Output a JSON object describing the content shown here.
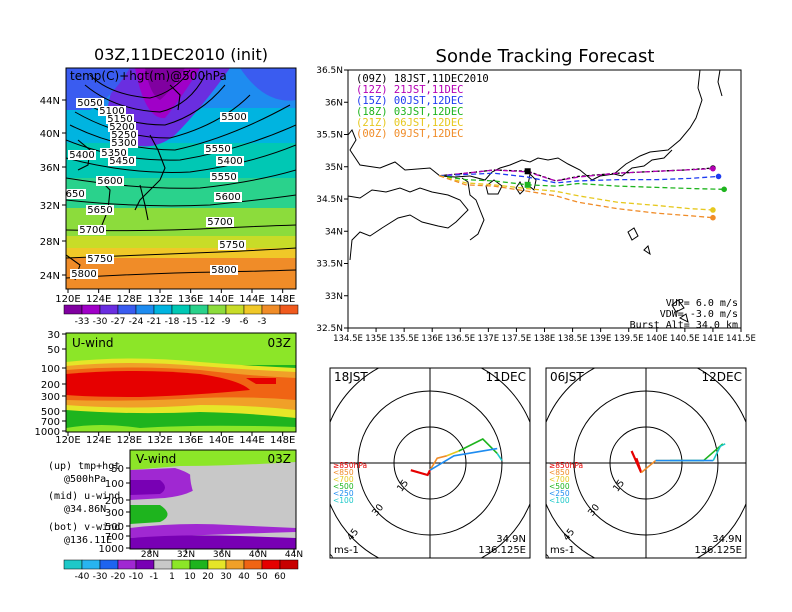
{
  "chart_data": [
    {
      "type": "heatmap",
      "panel": "upper-left",
      "title": "03Z,11DEC2010 (init)",
      "subtitle": "temp(C)+hgt(m)@500hPa",
      "xticks": [
        "120E",
        "124E",
        "128E",
        "132E",
        "136E",
        "140E",
        "144E",
        "148E"
      ],
      "yticks": [
        "44N",
        "40N",
        "36N",
        "32N",
        "28N",
        "24N"
      ],
      "contour_labels": [
        "5050",
        "5100",
        "5150",
        "5200",
        "5250",
        "5300",
        "5350",
        "5400",
        "5450",
        "5500",
        "5550",
        "5400",
        "5600",
        "5550",
        "5650",
        "5600",
        "5650",
        "5700",
        "5700",
        "5750",
        "5750",
        "5800",
        "5800"
      ],
      "colorbar": [
        "-33",
        "-30",
        "-27",
        "-24",
        "-21",
        "-18",
        "-15",
        "-12",
        "-9",
        "-6",
        "-3"
      ],
      "colorbar_colors": [
        "#8000a0",
        "#a000c8",
        "#6a2ee0",
        "#3a5cf0",
        "#1e8cf0",
        "#00b4e0",
        "#00c8b4",
        "#2ad28c",
        "#8cdc3c",
        "#c8dc28",
        "#f0c828",
        "#f08c28",
        "#f05a1e"
      ]
    },
    {
      "type": "heatmap",
      "panel": "middle-left",
      "title": "U-wind",
      "time": "03Z",
      "xticks": [
        "120E",
        "124E",
        "128E",
        "132E",
        "136E",
        "140E",
        "144E",
        "148E"
      ],
      "yticks": [
        "30",
        "50",
        "100",
        "200",
        "300",
        "500",
        "700",
        "1000"
      ]
    },
    {
      "type": "heatmap",
      "panel": "lower-left",
      "title": "V-wind",
      "time": "03Z",
      "xticks": [
        "28N",
        "32N",
        "36N",
        "40N",
        "44N"
      ],
      "yticks": [
        "50",
        "100",
        "200",
        "300",
        "500",
        "700",
        "1000"
      ],
      "colorbar": [
        "-40",
        "-30",
        "-20",
        "-10",
        "-1",
        "1",
        "10",
        "20",
        "30",
        "40",
        "50",
        "60"
      ],
      "colorbar_colors": [
        "#1ec8c8",
        "#28b4f0",
        "#1e64f0",
        "#a028d2",
        "#7800b4",
        "#c8c8c8",
        "#8ce628",
        "#1eb41e",
        "#e6e628",
        "#f0a028",
        "#f06414",
        "#e60000",
        "#c80000"
      ]
    },
    {
      "type": "line",
      "panel": "upper-right",
      "title": "Sonde Tracking Forecast",
      "xticks": [
        "134.5E",
        "135E",
        "135.5E",
        "136E",
        "136.5E",
        "137E",
        "137.5E",
        "138E",
        "138.5E",
        "139E",
        "139.5E",
        "140E",
        "140.5E",
        "141E",
        "141.5E"
      ],
      "yticks": [
        "36.5N",
        "36N",
        "35.5N",
        "35N",
        "34.5N",
        "34N",
        "33.5N",
        "33N",
        "32.5N"
      ],
      "xlim": [
        134.5,
        141.5
      ],
      "ylim": [
        32.5,
        36.5
      ],
      "launch": [
        136.125,
        34.86
      ],
      "series": [
        {
          "name": "(09Z)  18JST,11DEC2010",
          "color": "#000000",
          "x": [
            136.125,
            136.6,
            137.1,
            137.7,
            138.2,
            138.6,
            139.3,
            140.0,
            140.5,
            141.0
          ],
          "y": [
            34.86,
            34.9,
            34.95,
            34.93,
            34.78,
            34.85,
            34.9,
            34.93,
            34.95,
            34.98
          ]
        },
        {
          "name": "(12Z)  21JST,11DEC",
          "color": "#b400b4",
          "x": [
            136.125,
            136.6,
            137.1,
            137.7,
            138.2,
            138.6,
            139.3,
            140.0,
            140.5,
            141.0
          ],
          "y": [
            34.86,
            34.9,
            34.95,
            34.92,
            34.78,
            34.84,
            34.9,
            34.93,
            34.95,
            34.97
          ]
        },
        {
          "name": "(15Z)  00JST,12DEC",
          "color": "#1e3cf0",
          "x": [
            136.125,
            136.6,
            137.1,
            137.7,
            138.2,
            138.6,
            139.3,
            140.0,
            140.6,
            141.1
          ],
          "y": [
            34.86,
            34.88,
            34.9,
            34.84,
            34.75,
            34.78,
            34.8,
            34.8,
            34.82,
            34.85
          ]
        },
        {
          "name": "(18Z)  03JST,12DEC",
          "color": "#1eb41e",
          "x": [
            136.125,
            136.6,
            137.1,
            137.7,
            138.2,
            138.6,
            139.3,
            140.0,
            140.7,
            141.2
          ],
          "y": [
            34.86,
            34.8,
            34.78,
            34.72,
            34.7,
            34.74,
            34.7,
            34.68,
            34.66,
            34.65
          ]
        },
        {
          "name": "(21Z)  06JST,12DEC",
          "color": "#e6c81e",
          "x": [
            136.125,
            136.6,
            137.1,
            137.7,
            138.2,
            138.6,
            139.3,
            140.0,
            140.6,
            141.0
          ],
          "y": [
            34.86,
            34.75,
            34.72,
            34.66,
            34.62,
            34.55,
            34.45,
            34.4,
            34.35,
            34.33
          ]
        },
        {
          "name": "(00Z)  09JST,12DEC",
          "color": "#f08c28",
          "x": [
            136.125,
            136.6,
            137.1,
            137.7,
            138.2,
            138.6,
            139.3,
            140.0,
            140.6,
            141.0
          ],
          "y": [
            34.86,
            34.72,
            34.7,
            34.62,
            34.55,
            34.45,
            34.35,
            34.28,
            34.24,
            34.21
          ]
        }
      ],
      "params": [
        "VUP=  6.0  m/s",
        "VDW= -3.0  m/s",
        "Burst Alt=  34.0  km"
      ]
    },
    {
      "type": "scatter",
      "panel": "hodograph-1",
      "time": "18JST",
      "date": "11DEC",
      "ring_labels": [
        "15",
        "30",
        "45",
        "60"
      ],
      "unit": "ms-1",
      "location": [
        "34.9N",
        "136.125E"
      ],
      "legend": [
        "≥850hPa",
        "<850",
        "<700",
        "<500",
        "<250",
        "<100"
      ],
      "legend_colors": [
        "#e60000",
        "#f08c28",
        "#e6c81e",
        "#1eb41e",
        "#1e8cf0",
        "#1ec8c8"
      ],
      "segments": [
        {
          "color": "#e60000",
          "points": [
            [
              -8,
              3
            ],
            [
              -1,
              5
            ],
            [
              0,
              3
            ]
          ]
        },
        {
          "color": "#f08c28",
          "points": [
            [
              0,
              3
            ],
            [
              3,
              -2
            ],
            [
              7,
              -3
            ]
          ]
        },
        {
          "color": "#e6c81e",
          "points": [
            [
              7,
              -3
            ],
            [
              12,
              -5
            ]
          ]
        },
        {
          "color": "#1eb41e",
          "points": [
            [
              12,
              -5
            ],
            [
              22,
              -10
            ],
            [
              28,
              -4
            ]
          ]
        },
        {
          "color": "#1e8cf0",
          "points": [
            [
              0,
              3
            ],
            [
              10,
              -3
            ],
            [
              28,
              -6
            ]
          ]
        },
        {
          "color": "#1ec8c8",
          "points": [
            [
              28,
              -4
            ],
            [
              30,
              -1
            ]
          ]
        }
      ]
    },
    {
      "type": "scatter",
      "panel": "hodograph-2",
      "time": "06JST",
      "date": "12DEC",
      "ring_labels": [
        "15",
        "30",
        "45",
        "60"
      ],
      "unit": "ms-1",
      "location": [
        "34.9N",
        "136.125E"
      ],
      "legend": [
        "≥850hPa",
        "<850",
        "<700",
        "<500",
        "<250",
        "<100"
      ],
      "legend_colors": [
        "#e60000",
        "#f08c28",
        "#e6c81e",
        "#1eb41e",
        "#1e8cf0",
        "#1ec8c8"
      ],
      "segments": [
        {
          "color": "#e60000",
          "points": [
            [
              -6,
              -5
            ],
            [
              -2,
              4
            ],
            [
              -4,
              -2
            ]
          ]
        },
        {
          "color": "#f08c28",
          "points": [
            [
              -2,
              4
            ],
            [
              4,
              -1
            ]
          ]
        },
        {
          "color": "#e6c81e",
          "points": [
            [
              4,
              -1
            ],
            [
              10,
              -1
            ]
          ]
        },
        {
          "color": "#1eb41e",
          "points": [
            [
              10,
              -1
            ],
            [
              24,
              -1
            ],
            [
              32,
              -8
            ]
          ]
        },
        {
          "color": "#1e8cf0",
          "points": [
            [
              4,
              -1
            ],
            [
              28,
              -1
            ]
          ]
        },
        {
          "color": "#1ec8c8",
          "points": [
            [
              28,
              -1
            ],
            [
              31,
              -7
            ],
            [
              33,
              -8
            ]
          ]
        }
      ]
    }
  ],
  "left_notes": [
    "(up)  tmp+hgt",
    "@500hPa",
    "(mid)  u-wind",
    "@34.86N",
    "(bot)  v-wind",
    "@136.11E"
  ]
}
